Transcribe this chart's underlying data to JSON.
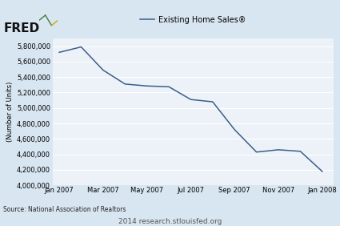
{
  "title": "Existing Home Sales®",
  "ylabel": "(Number of Units)",
  "source_text": "Source: National Association of Realtors",
  "watermark": "2014 research.stlouisfed.org",
  "line_color": "#3a5f8a",
  "fig_bg_color": "#d8e6f2",
  "plot_bg_color": "#edf2f8",
  "grid_color": "#ffffff",
  "ylim": [
    4000000,
    5900000
  ],
  "yticks": [
    4000000,
    4200000,
    4400000,
    4600000,
    4800000,
    5000000,
    5200000,
    5400000,
    5600000,
    5800000
  ],
  "xtick_labels": [
    "Jan 2007",
    "Mar 2007",
    "May 2007",
    "Jul 2007",
    "Sep 2007",
    "Nov 2007",
    "Jan 2008"
  ],
  "xtick_positions": [
    0,
    2,
    4,
    6,
    8,
    10,
    12
  ],
  "xlim": [
    -0.3,
    12.5
  ],
  "data_x": [
    0,
    1,
    2,
    3,
    4,
    5,
    6,
    7,
    8,
    9,
    10,
    11,
    12
  ],
  "data_y": [
    5720000,
    5790000,
    5490000,
    5310000,
    5285000,
    5275000,
    5110000,
    5080000,
    4720000,
    4430000,
    4460000,
    4440000,
    4180000
  ]
}
